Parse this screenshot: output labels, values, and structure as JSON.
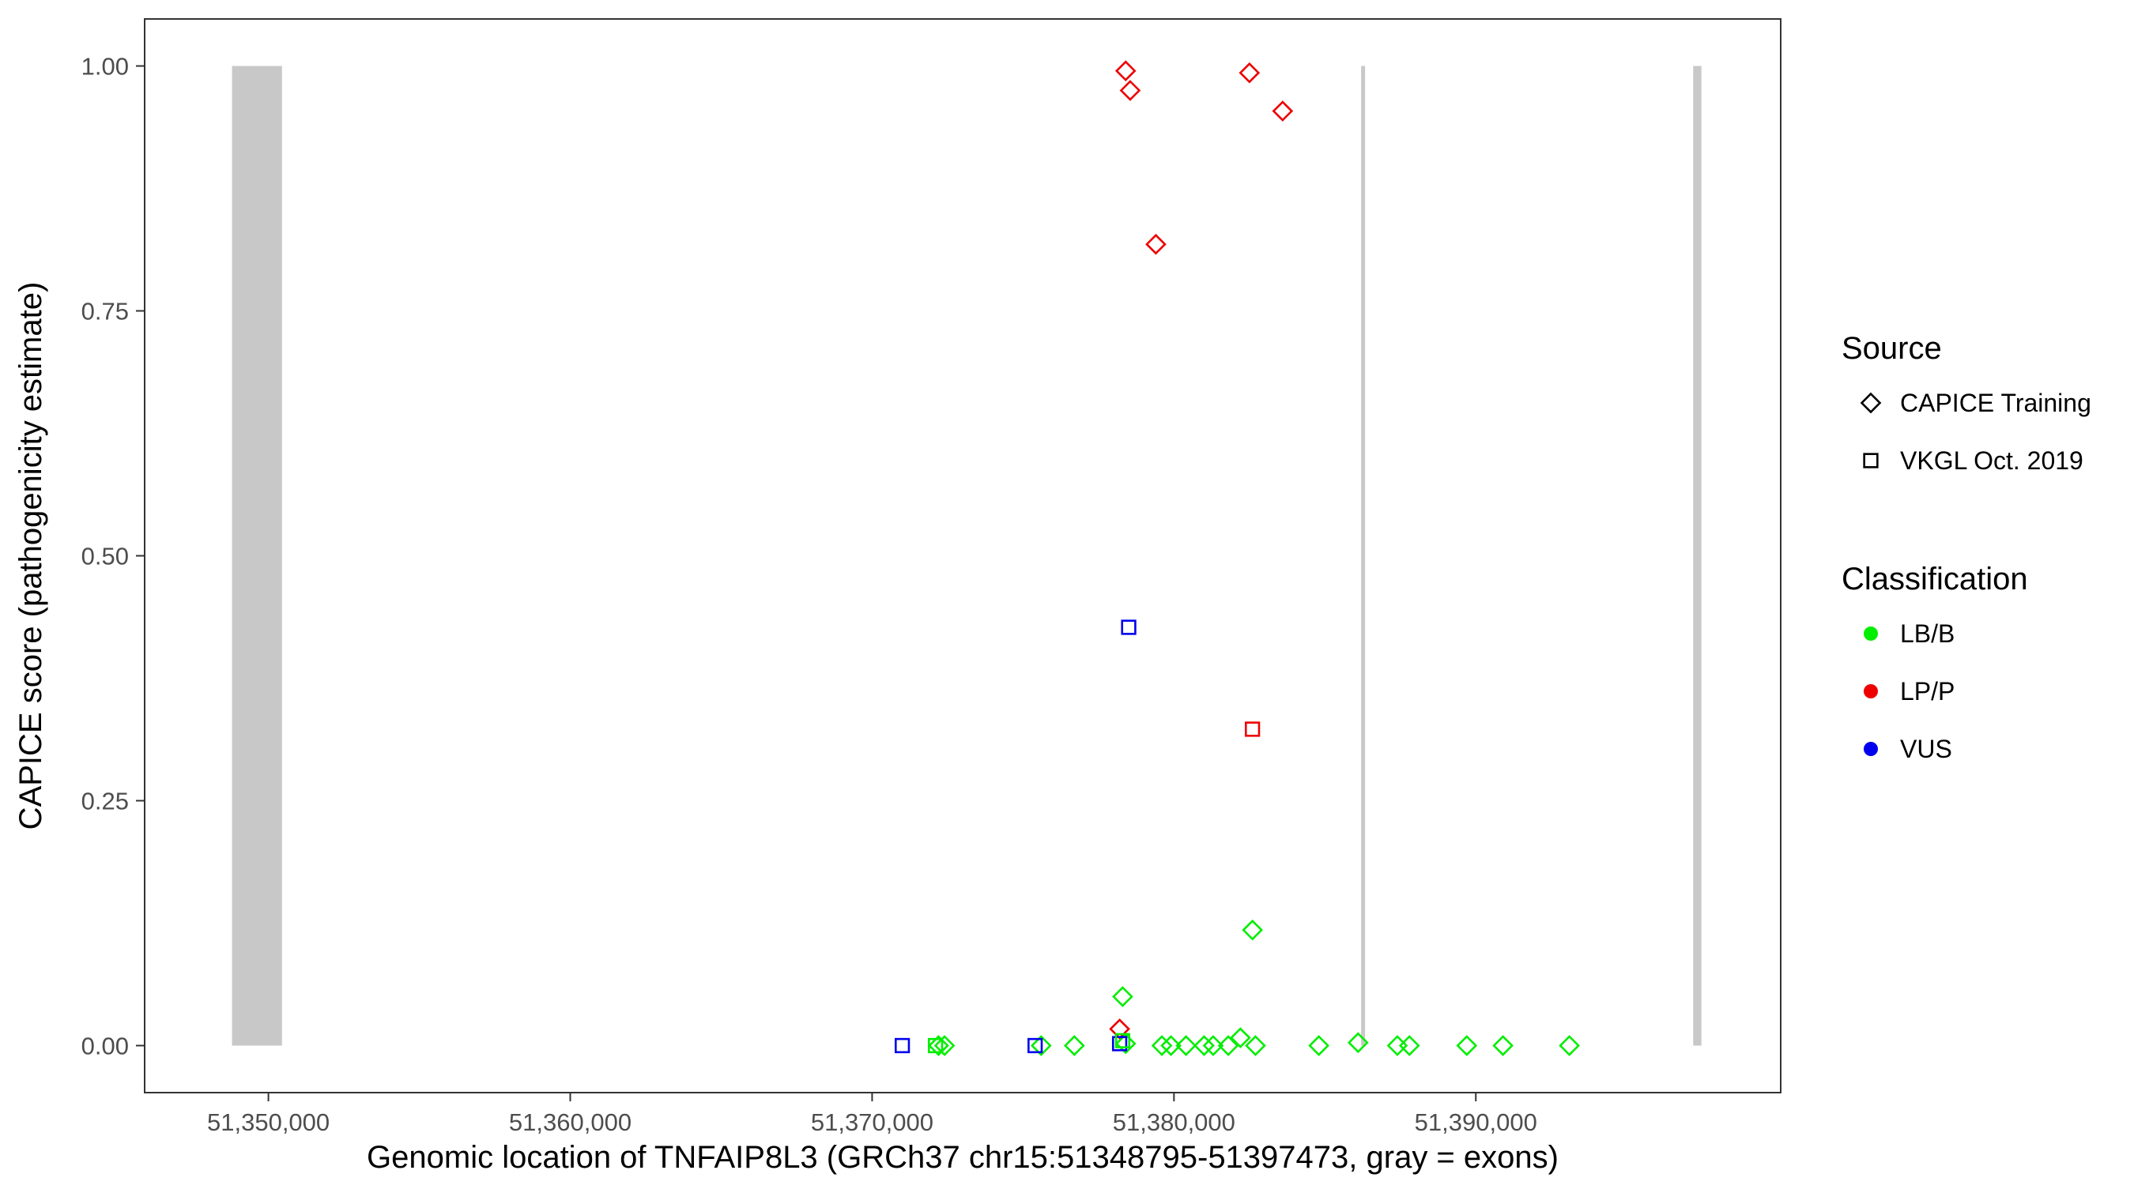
{
  "chart_data": {
    "type": "scatter",
    "title": "",
    "xlabel": "Genomic location of TNFAIP8L3 (GRCh37 chr15:51348795-51397473, gray = exons)",
    "ylabel": "CAPICE score (pathogenicity estimate)",
    "xlim": [
      51345900,
      51400100
    ],
    "ylim": [
      -0.048,
      1.048
    ],
    "x_ticks": [
      51350000,
      51360000,
      51370000,
      51380000,
      51390000
    ],
    "x_tick_labels": [
      "51,350,000",
      "51,360,000",
      "51,370,000",
      "51,380,000",
      "51,390,000"
    ],
    "y_ticks": [
      0,
      0.25,
      0.5,
      0.75,
      1.0
    ],
    "y_tick_labels": [
      "0.00",
      "0.25",
      "0.50",
      "0.75",
      "1.00"
    ],
    "grid": false,
    "legend_position": "right",
    "exons": [
      {
        "start": 51348795,
        "end": 51350450
      },
      {
        "start": 51386200,
        "end": 51386330
      },
      {
        "start": 51397200,
        "end": 51397473
      }
    ],
    "exon_color": "#c8c8c8",
    "legend": {
      "source_title": "Source",
      "source_items": [
        {
          "label": "CAPICE Training",
          "shape": "diamond"
        },
        {
          "label": "VKGL Oct. 2019",
          "shape": "square"
        }
      ],
      "class_title": "Classification",
      "class_items": [
        {
          "label": "LB/B",
          "color": "#00ee00"
        },
        {
          "label": "LP/P",
          "color": "#ee0000"
        },
        {
          "label": "VUS",
          "color": "#0000ee"
        }
      ]
    },
    "series": [
      {
        "source": "CAPICE Training",
        "classification": "LP/P",
        "points": [
          [
            51378400,
            0.995
          ],
          [
            51378550,
            0.975
          ],
          [
            51382500,
            0.993
          ],
          [
            51383600,
            0.954
          ],
          [
            51379400,
            0.818
          ],
          [
            51378200,
            0.017
          ]
        ]
      },
      {
        "source": "CAPICE Training",
        "classification": "LB/B",
        "points": [
          [
            51382600,
            0.118
          ],
          [
            51378300,
            0.05
          ],
          [
            51372200,
            0.0
          ],
          [
            51372400,
            0.0
          ],
          [
            51375600,
            0.0
          ],
          [
            51376700,
            0.0
          ],
          [
            51378400,
            0.002
          ],
          [
            51379600,
            0.0
          ],
          [
            51379900,
            0.0
          ],
          [
            51380400,
            0.0
          ],
          [
            51381000,
            0.0
          ],
          [
            51381300,
            0.0
          ],
          [
            51381800,
            0.0
          ],
          [
            51382200,
            0.008
          ],
          [
            51382700,
            0.0
          ],
          [
            51384800,
            0.0
          ],
          [
            51386100,
            0.003
          ],
          [
            51387400,
            0.0
          ],
          [
            51387800,
            0.0
          ],
          [
            51389700,
            0.0
          ],
          [
            51390900,
            0.0
          ],
          [
            51393100,
            0.0
          ]
        ]
      },
      {
        "source": "VKGL Oct. 2019",
        "classification": "VUS",
        "points": [
          [
            51378500,
            0.427
          ],
          [
            51371000,
            0.0
          ],
          [
            51375400,
            0.0
          ],
          [
            51378200,
            0.002
          ]
        ]
      },
      {
        "source": "VKGL Oct. 2019",
        "classification": "LP/P",
        "points": [
          [
            51382600,
            0.323
          ]
        ]
      },
      {
        "source": "VKGL Oct. 2019",
        "classification": "LB/B",
        "points": [
          [
            51372100,
            0.0
          ],
          [
            51378300,
            0.005
          ]
        ]
      }
    ]
  }
}
